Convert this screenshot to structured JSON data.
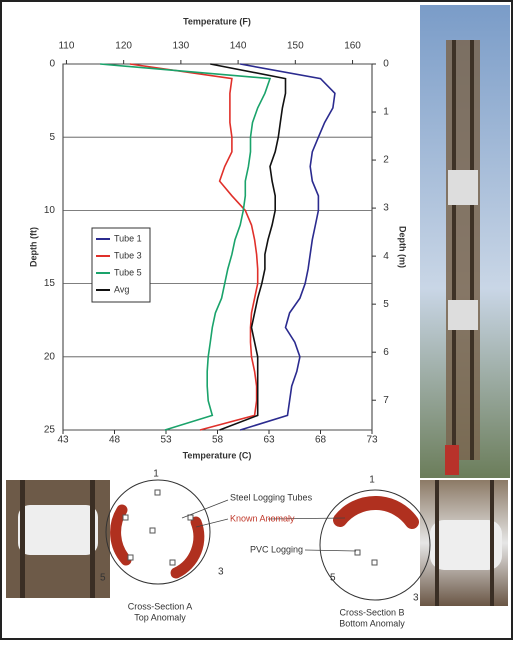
{
  "chart_data": {
    "type": "line",
    "orientation": "vertical",
    "x_label": "Temperature (C)",
    "x2_label": "Temperature (F)",
    "y_label": "Depth (ft)",
    "y2_label": "Depth (m)",
    "depth": [
      0,
      1,
      2,
      3,
      4,
      5,
      6,
      7,
      8,
      9,
      10,
      11,
      12,
      13,
      14,
      15,
      16,
      17,
      18,
      19,
      20,
      21,
      22,
      23,
      24,
      25
    ],
    "series": [
      {
        "name": "Tube 1",
        "color": "#2b2b8f",
        "values": [
          60.2,
          68,
          69.4,
          69.2,
          68.4,
          67.8,
          67.2,
          67,
          67.2,
          67.8,
          67.8,
          67.5,
          67.2,
          67,
          66.8,
          66.5,
          66,
          65,
          64.6,
          65.5,
          66,
          65.7,
          65.2,
          65,
          64.8,
          60.2
        ]
      },
      {
        "name": "Tube 3",
        "color": "#e0302a",
        "values": [
          49.5,
          59.4,
          59.2,
          59.2,
          59.2,
          59.4,
          59.4,
          58.7,
          58.2,
          59.4,
          60.7,
          61.3,
          61.6,
          61.8,
          61.9,
          61.9,
          61.6,
          61.3,
          61.2,
          61.2,
          61.3,
          61.6,
          61.8,
          61.8,
          61.6,
          56.3
        ]
      },
      {
        "name": "Tube 5",
        "color": "#1aa36b",
        "values": [
          46.6,
          63.1,
          62.6,
          61.9,
          61.4,
          61.2,
          61.2,
          61,
          60.7,
          60.7,
          60.5,
          60.2,
          59.7,
          59.4,
          59,
          58.7,
          58.4,
          57.8,
          57.5,
          57.3,
          57.1,
          57,
          57,
          57.1,
          57.5,
          52.9
        ]
      },
      {
        "name": "Avg",
        "color": "#111111",
        "values": [
          57.3,
          64.6,
          64.6,
          64.3,
          64.1,
          63.9,
          63.6,
          63.1,
          63.3,
          63.6,
          63.6,
          63.3,
          62.9,
          62.6,
          62.6,
          62.3,
          61.9,
          61.6,
          61.3,
          61.6,
          61.9,
          61.9,
          61.9,
          61.9,
          61.9,
          58.2
        ]
      }
    ],
    "xlim": [
      43,
      73
    ],
    "xticks": [
      43,
      48,
      53,
      58,
      63,
      68,
      73
    ],
    "x2lim": [
      109.4,
      163.4
    ],
    "x2ticks": [
      110,
      120,
      130,
      140,
      150,
      160
    ],
    "ylim": [
      0,
      25
    ],
    "yticks": [
      0,
      5,
      10,
      15,
      20,
      25
    ],
    "y2lim": [
      0,
      7.62
    ],
    "y2ticks": [
      0,
      1,
      2,
      3,
      4,
      5,
      6,
      7
    ],
    "grid": true,
    "legend": "left"
  },
  "diagram": {
    "section_a": {
      "title": [
        "Cross-Section A",
        "Top Anomaly"
      ],
      "numbers": [
        "1",
        "3",
        "5"
      ]
    },
    "section_b": {
      "title": [
        "Cross-Section B",
        "Bottom Anomaly"
      ],
      "numbers": [
        "1",
        "3",
        "5"
      ]
    },
    "labels": {
      "steel": "Steel Logging Tubes",
      "anomaly": "Known Anomaly",
      "pvc": "PVC Logging"
    }
  }
}
